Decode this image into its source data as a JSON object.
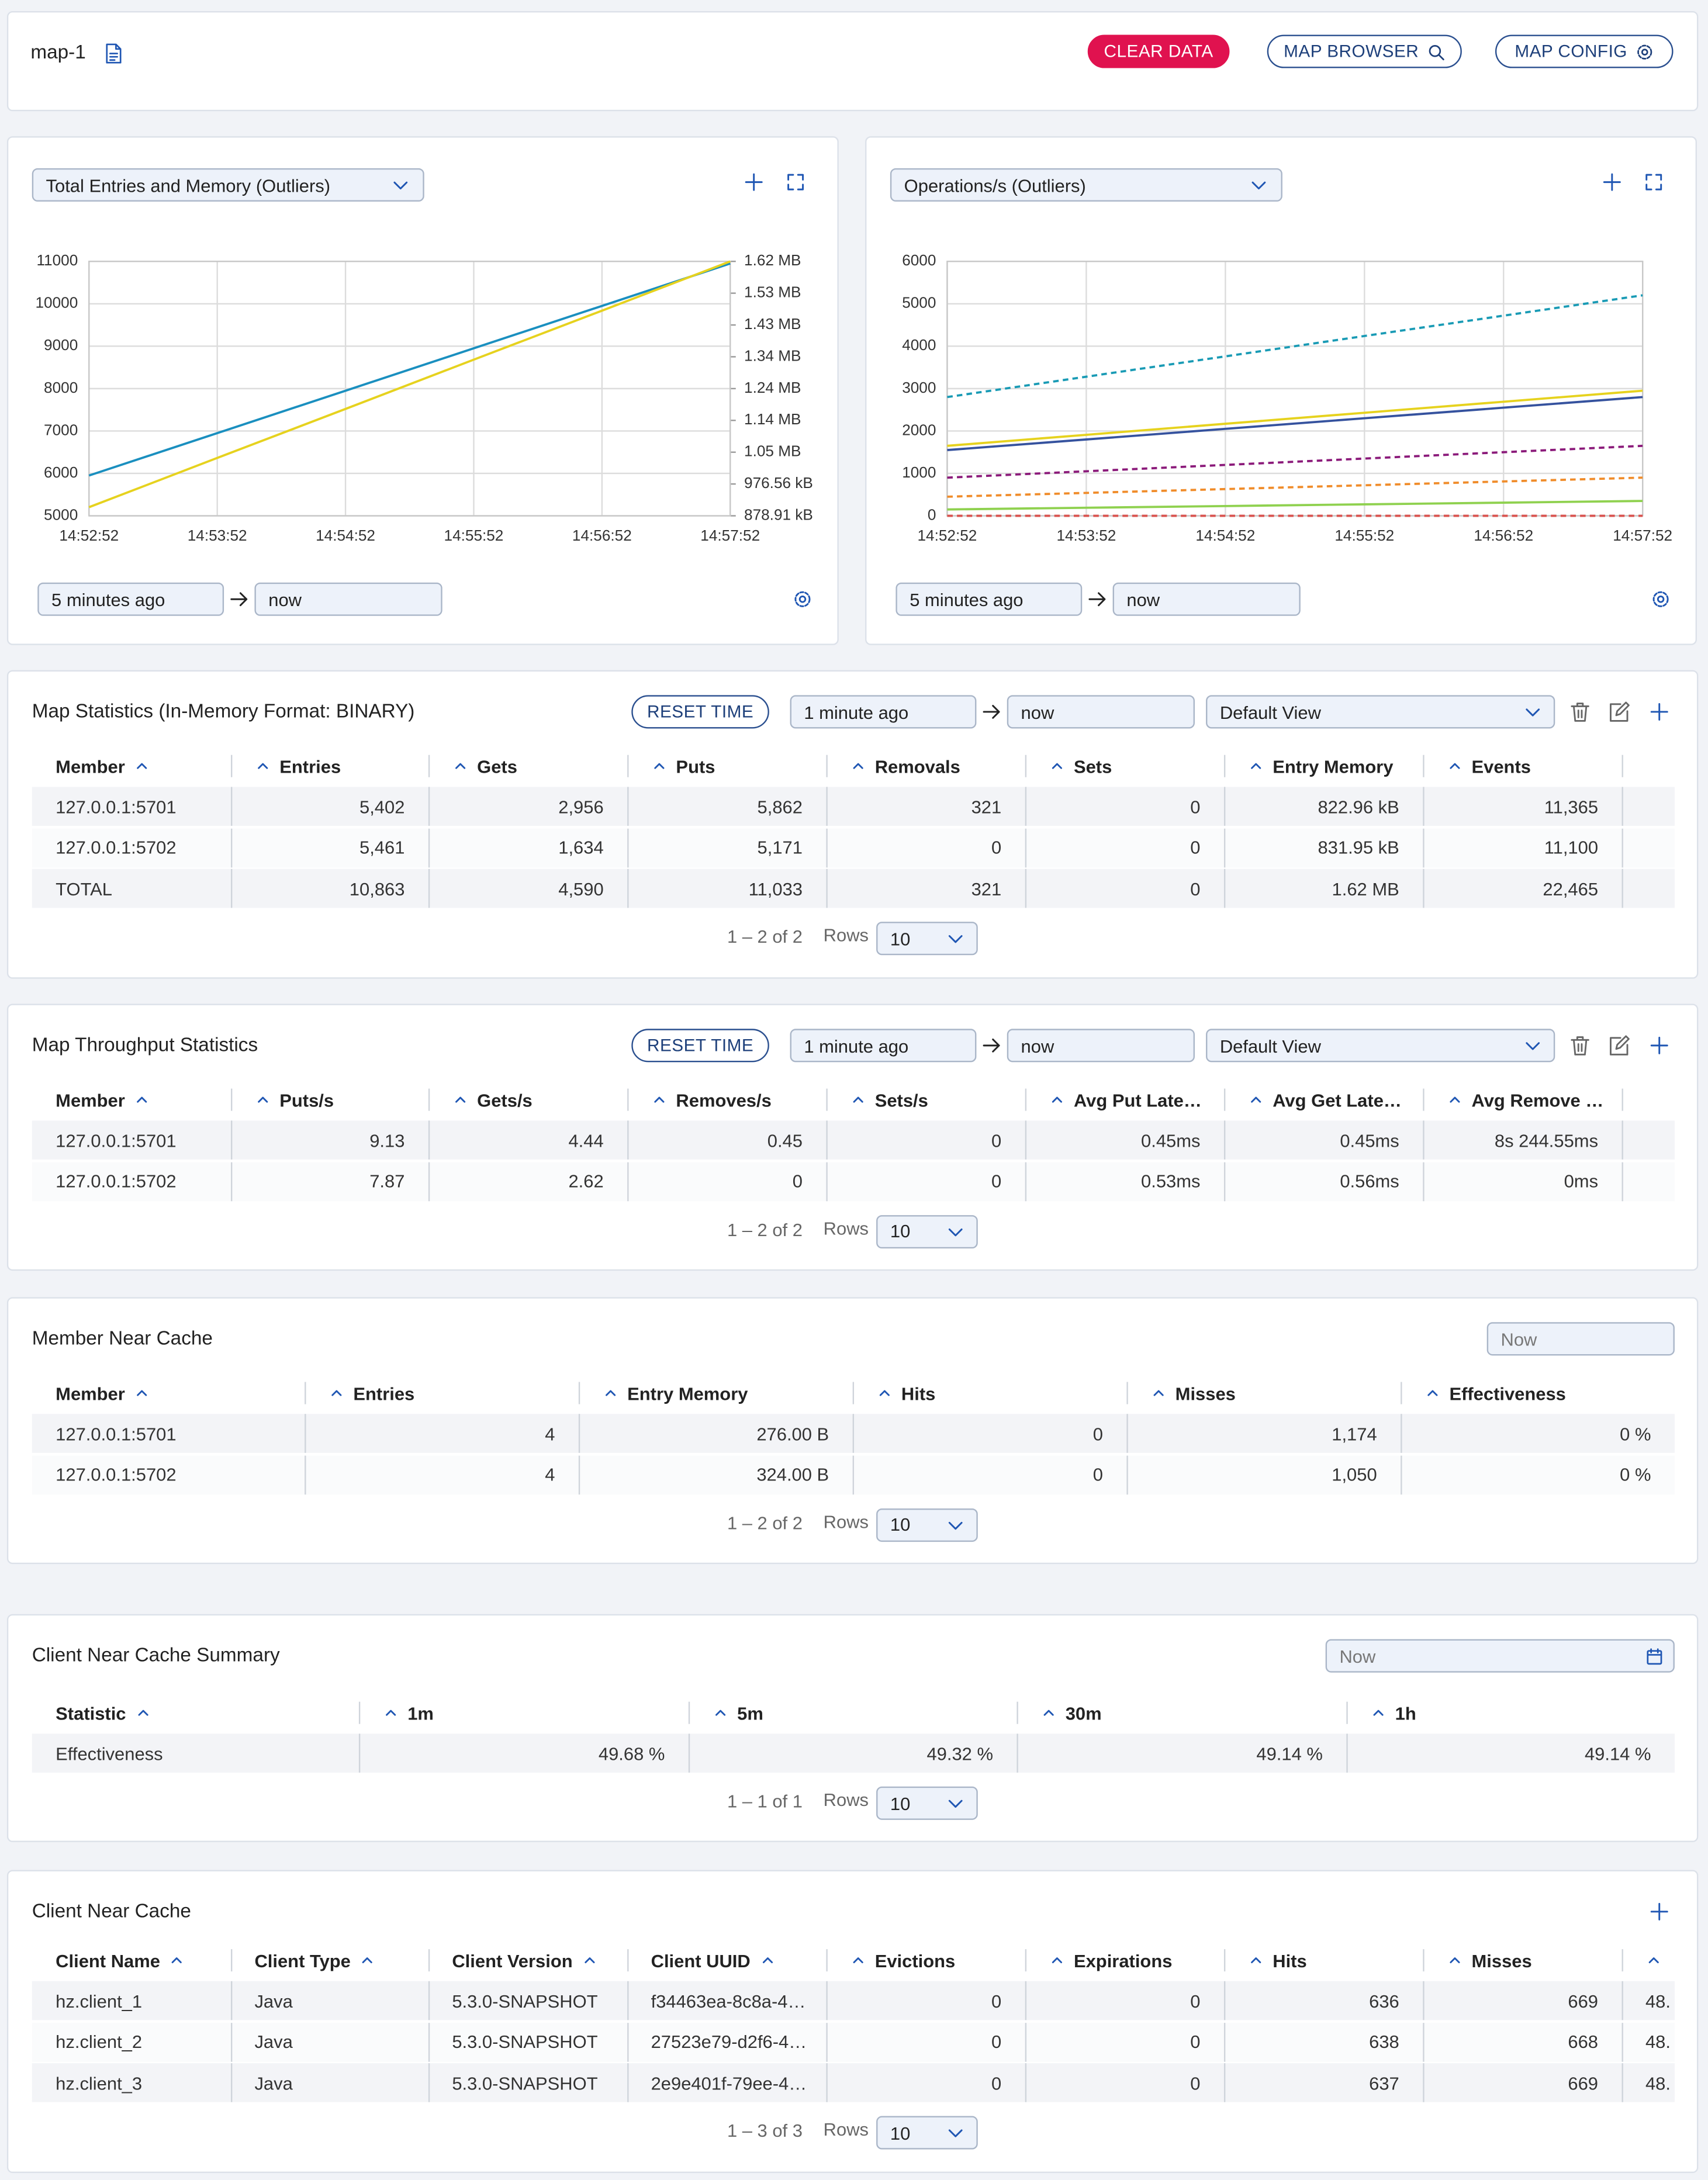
{
  "header": {
    "title": "map-1",
    "clear": "CLEAR DATA",
    "browser": "MAP BROWSER",
    "config": "MAP CONFIG"
  },
  "chart_data": [
    {
      "type": "line",
      "selector": "Total Entries and Memory (Outliers)",
      "from": "5 minutes ago",
      "to": "now",
      "x": [
        "14:52:52",
        "14:53:52",
        "14:54:52",
        "14:55:52",
        "14:56:52",
        "14:57:52"
      ],
      "ylim": [
        5000,
        11000
      ],
      "yticks": [
        5000,
        6000,
        7000,
        8000,
        9000,
        10000,
        11000
      ],
      "y2lim": [
        900000,
        1700000
      ],
      "y2ticks": [
        {
          "value": 900000,
          "label": "878.91 kB"
        },
        {
          "value": 1000000,
          "label": "976.56 kB"
        },
        {
          "value": 1100000,
          "label": "1.05 MB"
        },
        {
          "value": 1200000,
          "label": "1.14 MB"
        },
        {
          "value": 1300000,
          "label": "1.24 MB"
        },
        {
          "value": 1400000,
          "label": "1.34 MB"
        },
        {
          "value": 1500000,
          "label": "1.43 MB"
        },
        {
          "value": 1600000,
          "label": "1.53 MB"
        },
        {
          "value": 1700000,
          "label": "1.62 MB"
        }
      ],
      "grid": true,
      "series": [
        {
          "color": "#1a8fbf",
          "style": "solid",
          "values": [
            5950,
            6950,
            7950,
            8950,
            9950,
            10950
          ]
        },
        {
          "color": "#e6d21e",
          "style": "solid",
          "axis": "y2",
          "values": [
            927000,
            1082000,
            1236000,
            1391000,
            1545000,
            1700000
          ]
        }
      ]
    },
    {
      "type": "line",
      "selector": "Operations/s (Outliers)",
      "from": "5 minutes ago",
      "to": "now",
      "x": [
        "14:52:52",
        "14:53:52",
        "14:54:52",
        "14:55:52",
        "14:56:52",
        "14:57:52"
      ],
      "ylim": [
        0,
        6000
      ],
      "yticks": [
        0,
        1000,
        2000,
        3000,
        4000,
        5000,
        6000
      ],
      "grid": true,
      "series": [
        {
          "color": "#1a9bb5",
          "style": "dashed",
          "values": [
            2800,
            3280,
            3760,
            4240,
            4720,
            5200
          ]
        },
        {
          "color": "#e6d21e",
          "style": "solid",
          "values": [
            1650,
            1910,
            2170,
            2430,
            2690,
            2950
          ]
        },
        {
          "color": "#35529e",
          "style": "solid",
          "values": [
            1550,
            1800,
            2050,
            2300,
            2550,
            2800
          ]
        },
        {
          "color": "#8b1a7a",
          "style": "dashed",
          "values": [
            900,
            1050,
            1200,
            1350,
            1500,
            1650
          ]
        },
        {
          "color": "#f08c2a",
          "style": "dashed",
          "values": [
            450,
            540,
            630,
            720,
            810,
            900
          ]
        },
        {
          "color": "#8fd14f",
          "style": "solid",
          "values": [
            150,
            190,
            230,
            270,
            310,
            350
          ]
        },
        {
          "color": "#d9534f",
          "style": "dashed",
          "values": [
            0,
            0,
            0,
            0,
            0,
            0
          ]
        }
      ]
    }
  ],
  "map_statistics": {
    "title": "Map Statistics (In-Memory Format: BINARY)",
    "reset": "RESET TIME",
    "from": "1 minute ago",
    "to": "now",
    "view": "Default View",
    "columns": [
      "Member",
      "Entries",
      "Gets",
      "Puts",
      "Removals",
      "Sets",
      "Entry Memory",
      "Events"
    ],
    "rows": [
      [
        "127.0.0.1:5701",
        "5,402",
        "2,956",
        "5,862",
        "321",
        "0",
        "822.96 kB",
        "11,365"
      ],
      [
        "127.0.0.1:5702",
        "5,461",
        "1,634",
        "5,171",
        "0",
        "0",
        "831.95 kB",
        "11,100"
      ],
      [
        "TOTAL",
        "10,863",
        "4,590",
        "11,033",
        "321",
        "0",
        "1.62 MB",
        "22,465"
      ]
    ],
    "pagination": "1 – 2 of 2",
    "rows_label": "Rows",
    "page_size": "10"
  },
  "throughput_statistics": {
    "title": "Map Throughput Statistics",
    "reset": "RESET TIME",
    "from": "1 minute ago",
    "to": "now",
    "view": "Default View",
    "columns": [
      "Member",
      "Puts/s",
      "Gets/s",
      "Removes/s",
      "Sets/s",
      "Avg Put Late…",
      "Avg Get Late…",
      "Avg Remove …"
    ],
    "rows": [
      [
        "127.0.0.1:5701",
        "9.13",
        "4.44",
        "0.45",
        "0",
        "0.45ms",
        "0.45ms",
        "8s 244.55ms"
      ],
      [
        "127.0.0.1:5702",
        "7.87",
        "2.62",
        "0",
        "0",
        "0.53ms",
        "0.56ms",
        "0ms"
      ]
    ],
    "pagination": "1 – 2 of 2",
    "rows_label": "Rows",
    "page_size": "10"
  },
  "member_near_cache": {
    "title": "Member Near Cache",
    "now_field": "Now",
    "columns": [
      "Member",
      "Entries",
      "Entry Memory",
      "Hits",
      "Misses",
      "Effectiveness"
    ],
    "rows": [
      [
        "127.0.0.1:5701",
        "4",
        "276.00 B",
        "0",
        "1,174",
        "0 %"
      ],
      [
        "127.0.0.1:5702",
        "4",
        "324.00 B",
        "0",
        "1,050",
        "0 %"
      ]
    ],
    "pagination": "1 – 2 of 2",
    "rows_label": "Rows",
    "page_size": "10"
  },
  "client_near_cache_summary": {
    "title": "Client Near Cache Summary",
    "now_field": "Now",
    "columns": [
      "Statistic",
      "1m",
      "5m",
      "30m",
      "1h"
    ],
    "rows": [
      [
        "Effectiveness",
        "49.68 %",
        "49.32 %",
        "49.14 %",
        "49.14 %"
      ]
    ],
    "pagination": "1 – 1 of 1",
    "rows_label": "Rows",
    "page_size": "10"
  },
  "client_near_cache": {
    "title": "Client Near Cache",
    "columns": [
      "Client Name",
      "Client Type",
      "Client Version",
      "Client UUID",
      "Evictions",
      "Expirations",
      "Hits",
      "Misses",
      null
    ],
    "rows": [
      [
        "hz.client_1",
        "Java",
        "5.3.0-SNAPSHOT",
        "f34463ea-8c8a-4…",
        "0",
        "0",
        "636",
        "669",
        "48."
      ],
      [
        "hz.client_2",
        "Java",
        "5.3.0-SNAPSHOT",
        "27523e79-d2f6-4…",
        "0",
        "0",
        "638",
        "668",
        "48."
      ],
      [
        "hz.client_3",
        "Java",
        "5.3.0-SNAPSHOT",
        "2e9e401f-79ee-4…",
        "0",
        "0",
        "637",
        "669",
        "48."
      ]
    ],
    "pagination": "1 – 3 of 3",
    "rows_label": "Rows",
    "page_size": "10"
  }
}
